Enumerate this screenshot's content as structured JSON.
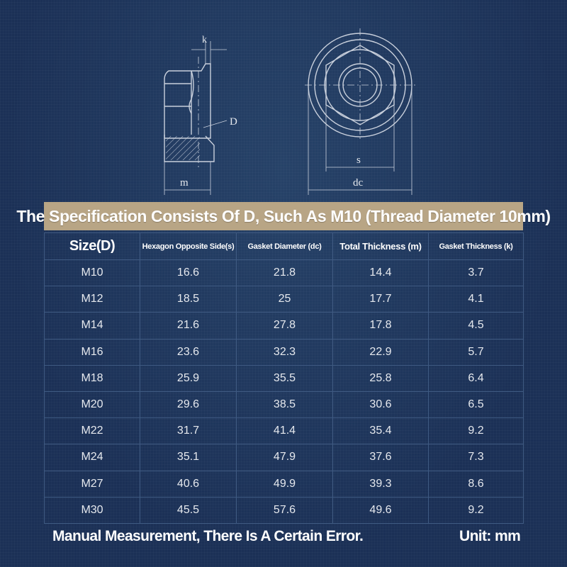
{
  "diagram": {
    "label_k": "k",
    "label_D": "D",
    "label_m": "m",
    "label_s": "s",
    "label_dc": "dc"
  },
  "banner": {
    "title": "The Specification Consists Of D, Such As M10 (Thread Diameter 10mm)"
  },
  "table": {
    "headers": [
      "Size(D)",
      "Hexagon Opposite Side(s)",
      "Gasket Diameter (dc)",
      "Total Thickness (m)",
      "Gasket Thickness (k)"
    ],
    "rows": [
      [
        "M10",
        "16.6",
        "21.8",
        "14.4",
        "3.7"
      ],
      [
        "M12",
        "18.5",
        "25",
        "17.7",
        "4.1"
      ],
      [
        "M14",
        "21.6",
        "27.8",
        "17.8",
        "4.5"
      ],
      [
        "M16",
        "23.6",
        "32.3",
        "22.9",
        "5.7"
      ],
      [
        "M18",
        "25.9",
        "35.5",
        "25.8",
        "6.4"
      ],
      [
        "M20",
        "29.6",
        "38.5",
        "30.6",
        "6.5"
      ],
      [
        "M22",
        "31.7",
        "41.4",
        "35.4",
        "9.2"
      ],
      [
        "M24",
        "35.1",
        "47.9",
        "37.6",
        "7.3"
      ],
      [
        "M27",
        "40.6",
        "49.9",
        "39.3",
        "8.6"
      ],
      [
        "M30",
        "45.5",
        "57.6",
        "49.6",
        "9.2"
      ]
    ]
  },
  "footer": {
    "note": "Manual Measurement, There Is A Certain Error.",
    "unit": "Unit: mm"
  },
  "colors": {
    "background": "#1d3358",
    "banner": "#b8a585",
    "grid": "#3f5a82",
    "drawing_line": "#c9d0dc"
  }
}
